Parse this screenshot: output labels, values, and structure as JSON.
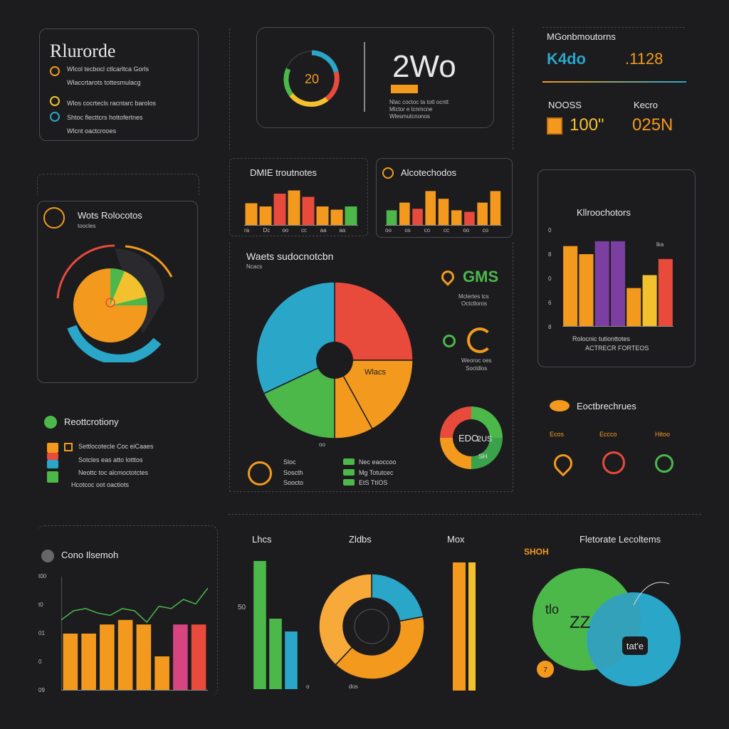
{
  "colors": {
    "orange": "#f39a1e",
    "red": "#e84a3c",
    "green": "#4cb84a",
    "blue": "#2aa6c9",
    "purple": "#7a3fa0",
    "yellow": "#f4c12e",
    "pink": "#d6457f",
    "bg": "#1c1c1f"
  },
  "header_panel": {
    "title": "Rlurorde",
    "row1": "Wlcol tecbocl ctlcarltca Gorls",
    "row2": "Wlaccrtarots tottesmulacg",
    "row3": "Wlos cocrtecls racntarc barolos",
    "row4": "Shtoc flecttcrs hottofertnes",
    "row5": "Wlcnt oactcrooes"
  },
  "kpi_center": {
    "gauge_value": "20",
    "big_value": "2Wo",
    "note1": "Nlac coctoc ta tott ocntt",
    "note2": "Mlctor e lcnmcne",
    "note3": "Wlesmutcnonos"
  },
  "kpi_right": {
    "title": "MGonbmoutorns",
    "value1": "K4do",
    "value2": ".1128",
    "label3": "NOOSS",
    "value3": "100\"",
    "label4": "Kecro",
    "value4": "025N"
  },
  "bars_small_1": {
    "title": "DMIE troutnotes",
    "axis": [
      "ra",
      "Dc",
      "oo",
      "cc",
      "aa",
      "aa"
    ]
  },
  "bars_small_2": {
    "title": "Alcotechodos",
    "axis": [
      "oo",
      "os",
      "co",
      "cc",
      "oo",
      "co"
    ]
  },
  "radial_panel": {
    "title": "Wots Rolocotos",
    "subtitle": "toocles"
  },
  "pie_main": {
    "title": "Waets sudocnotcbn",
    "subtitle": "Ncacs",
    "slice_label": "Wlacs",
    "bottom_label": "oo",
    "legend": [
      "Sloc",
      "Soscth",
      "Soocto"
    ],
    "legend2": [
      "Nec eaoccoo",
      "Mg Totutcec",
      "EtS TtIOS"
    ]
  },
  "side_kpis": {
    "gms": "GMS",
    "gms_note1": "Mclertes tcs",
    "gms_note2": "Octctloros",
    "note2a": "Weoroc oes",
    "note2b": "Socldlos"
  },
  "donut_small": {
    "label": "EDO",
    "value": "2US",
    "inner": "SH"
  },
  "bars_tall": {
    "title": "Kllroochotors",
    "ticks": [
      "0",
      "8",
      "0",
      "6",
      "8"
    ],
    "caption1": "Rolocnic tutionttotes",
    "caption2": "ACTRECR FORTEOS",
    "corner": "lka"
  },
  "legend_panel": {
    "title": "Reottcrotiony",
    "rows": [
      "Settlocotecle  Coc eiCaaes",
      "Sotcles  eas atto lotttos",
      "Neottc toc alcmoctotctes",
      "Hcotcoc oot  oactiots"
    ]
  },
  "icons_panel": {
    "title": "Eoctbrechrues",
    "labels": [
      "Ecos",
      "Eccco",
      "Hitoo"
    ]
  },
  "combo_chart": {
    "title": "Cono Ilsemoh",
    "yticks": [
      "t00",
      "t0",
      "01",
      "0",
      "09"
    ]
  },
  "mini_bars": {
    "title": "Lhcs",
    "tick": "50",
    "bottom": "o"
  },
  "ring_chart": {
    "title": "Zldbs",
    "bottom": "dos"
  },
  "single_bar": {
    "title": "Mox"
  },
  "venn": {
    "title": "Fletorate Lecoltems",
    "corner": "SHOH",
    "big": "tlo",
    "mid": "ZZ",
    "badge": "tat'e",
    "dot": "7"
  },
  "chart_data": [
    {
      "type": "bar",
      "name": "bars_small_1",
      "values": [
        35,
        30,
        50,
        55,
        45,
        30,
        25,
        30
      ],
      "ylim": [
        0,
        60
      ]
    },
    {
      "type": "bar",
      "name": "bars_small_2",
      "values": [
        20,
        30,
        22,
        45,
        35,
        20,
        18,
        30,
        45
      ],
      "ylim": [
        0,
        50
      ]
    },
    {
      "type": "pie",
      "name": "pie_main",
      "values": [
        25,
        17,
        8,
        18,
        32
      ]
    },
    {
      "type": "bar",
      "name": "bars_tall",
      "values": [
        50,
        45,
        53,
        53,
        24,
        32,
        42
      ],
      "ylim": [
        0,
        60
      ]
    },
    {
      "type": "bar",
      "name": "combo_chart",
      "values": [
        50,
        50,
        58,
        62,
        58,
        30,
        58,
        58
      ],
      "line": [
        62,
        70,
        72,
        68,
        66,
        72,
        70,
        60,
        74,
        72,
        80,
        76,
        90
      ],
      "ylim": [
        0,
        100
      ]
    },
    {
      "type": "bar",
      "name": "mini_bars",
      "values": [
        100,
        55,
        45
      ],
      "ylim": [
        0,
        100
      ]
    },
    {
      "type": "pie",
      "name": "ring_chart",
      "values": [
        22,
        40,
        38
      ]
    }
  ]
}
